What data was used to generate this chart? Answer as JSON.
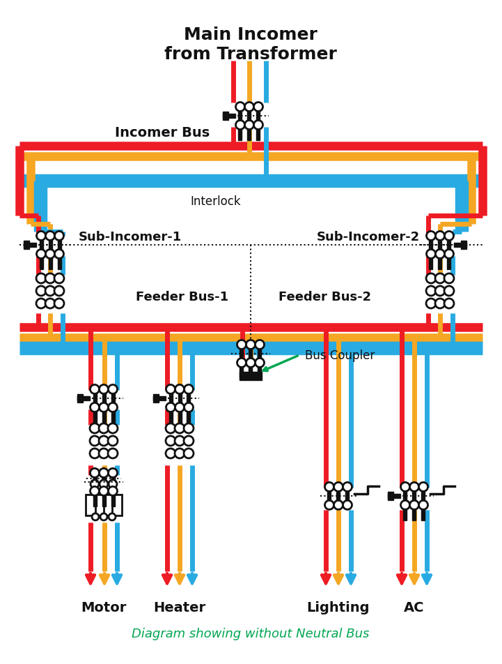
{
  "colors": {
    "red": "#EE1C25",
    "yellow": "#F5A623",
    "blue": "#29ABE2",
    "black": "#111111",
    "white": "#FFFFFF",
    "green": "#00A651"
  },
  "labels": {
    "title": "Main Incomer\nfrom Transformer",
    "incomer_bus": "Incomer Bus",
    "interlock": "Interlock",
    "sub_incomer_1": "Sub-Incomer-1",
    "sub_incomer_2": "Sub-Incomer-2",
    "feeder_bus_1": "Feeder Bus-1",
    "feeder_bus_2": "Feeder Bus-2",
    "bus_coupler": "Bus Coupler",
    "motor": "Motor",
    "heater": "Heater",
    "lighting": "Lighting",
    "ac": "AC",
    "subtitle": "Diagram showing without Neutral Bus"
  },
  "figsize": [
    7.21,
    9.53
  ],
  "dpi": 100
}
